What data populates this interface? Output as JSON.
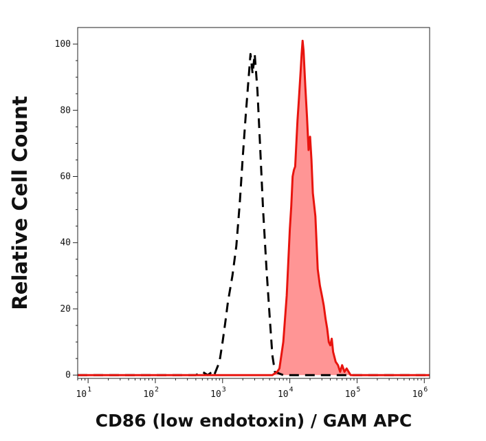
{
  "chart_data": {
    "type": "area",
    "title": "",
    "xlabel": "CD86 (low endotoxin) / GAM APC",
    "ylabel": "Relative Cell Count",
    "x_scale": "log",
    "xlim": [
      7,
      1200000
    ],
    "ylim": [
      -1,
      105
    ],
    "grid": false,
    "x_ticks": [
      {
        "base": "10",
        "exp": "1",
        "value": 10
      },
      {
        "base": "10",
        "exp": "2",
        "value": 100
      },
      {
        "base": "10",
        "exp": "3",
        "value": 1000
      },
      {
        "base": "10",
        "exp": "4",
        "value": 10000
      },
      {
        "base": "10",
        "exp": "5",
        "value": 100000
      },
      {
        "base": "10",
        "exp": "6",
        "value": 1000000
      }
    ],
    "y_ticks": [
      {
        "label": "0",
        "value": 0
      },
      {
        "label": "20",
        "value": 20
      },
      {
        "label": "40",
        "value": 40
      },
      {
        "label": "60",
        "value": 60
      },
      {
        "label": "80",
        "value": 80
      },
      {
        "label": "100",
        "value": 100
      }
    ],
    "series": [
      {
        "style": "dashed",
        "color": "#000000",
        "filled": false,
        "x": [
          7,
          100,
          400,
          500,
          600,
          700,
          750,
          900,
          1000,
          1100,
          1200,
          1400,
          1600,
          1800,
          2000,
          2200,
          2400,
          2600,
          2800,
          3000,
          3300,
          3600,
          4000,
          4500,
          5000,
          5500,
          6000,
          8000,
          10000,
          1200000
        ],
        "y": [
          0,
          0,
          0,
          1,
          0,
          1,
          0,
          4,
          10,
          16,
          22,
          30,
          39,
          52,
          66,
          78,
          88,
          97,
          91,
          97,
          86,
          70,
          50,
          32,
          18,
          6,
          1,
          0,
          0,
          0
        ]
      },
      {
        "style": "solid",
        "color": "#e8140e",
        "fill": "#ff9595",
        "filled": true,
        "x": [
          7,
          5500,
          6500,
          7000,
          8000,
          9000,
          10000,
          10500,
          11000,
          11500,
          12000,
          12500,
          13000,
          13500,
          14000,
          14500,
          15000,
          15500,
          16000,
          17000,
          18000,
          19000,
          20000,
          21000,
          22000,
          24000,
          26000,
          28000,
          30000,
          32000,
          34000,
          36000,
          38000,
          40000,
          42000,
          44000,
          48000,
          52000,
          56000,
          60000,
          65000,
          70000,
          80000,
          90000,
          1200000
        ],
        "y": [
          0,
          0,
          1,
          2,
          10,
          24,
          44,
          51,
          60,
          62,
          63,
          70,
          77,
          82,
          87,
          92,
          97,
          101,
          98,
          87,
          78,
          68,
          72,
          65,
          55,
          48,
          32,
          27,
          24,
          21,
          17,
          14,
          10,
          9,
          11,
          7,
          4,
          3,
          1,
          3,
          1,
          2,
          0,
          0,
          0
        ]
      }
    ]
  }
}
